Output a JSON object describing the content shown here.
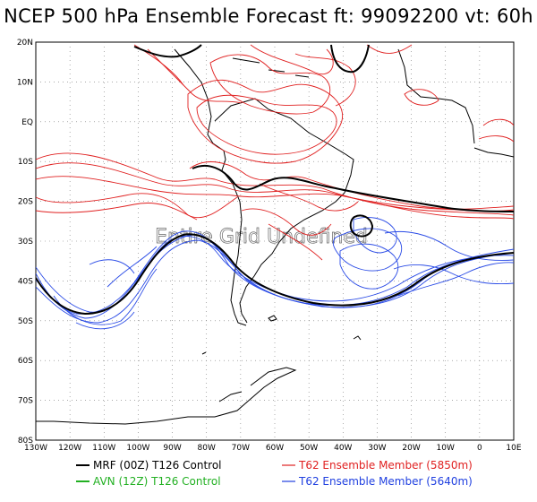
{
  "title": "NCEP 500 hPa Ensemble Forecast   ft: 99092200  vt: 60h",
  "watermark": "Entire Grid Undefined",
  "map": {
    "lon_range": [
      -130,
      10
    ],
    "lat_range": [
      -80,
      20
    ],
    "lat_ticks": [
      "20N",
      "10N",
      "EQ",
      "10S",
      "20S",
      "30S",
      "40S",
      "50S",
      "60S",
      "70S",
      "80S"
    ],
    "lon_ticks": [
      "130W",
      "120W",
      "110W",
      "100W",
      "90W",
      "80W",
      "70W",
      "60W",
      "50W",
      "40W",
      "30W",
      "20W",
      "10W",
      "0",
      "10E"
    ],
    "grid": "dotted"
  },
  "legend": [
    {
      "label": "MRF (00Z) T126 Control",
      "color": "#000000"
    },
    {
      "label": "AVN (12Z) T126 Control",
      "color": "#22b022"
    },
    {
      "label": "T62 Ensemble Member (5850m)",
      "color": "#e02020"
    },
    {
      "label": "T62 Ensemble Member (5640m)",
      "color": "#2040e0"
    }
  ],
  "colors": {
    "control": "#000000",
    "red": "#e02020",
    "blue": "#2a4be6",
    "coast": "#000000"
  }
}
